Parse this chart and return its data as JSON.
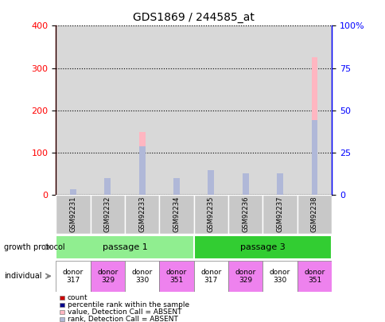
{
  "title": "GDS1869 / 244585_at",
  "samples": [
    "GSM92231",
    "GSM92232",
    "GSM92233",
    "GSM92234",
    "GSM92235",
    "GSM92236",
    "GSM92237",
    "GSM92238"
  ],
  "value_absent": [
    5,
    28,
    148,
    28,
    52,
    40,
    40,
    325
  ],
  "rank_absent_pct": [
    3.5,
    10,
    28.5,
    10,
    14.5,
    12.5,
    12.5,
    44
  ],
  "ylim_left": [
    0,
    400
  ],
  "ylim_right": [
    0,
    100
  ],
  "yticks_left": [
    0,
    100,
    200,
    300,
    400
  ],
  "yticks_right": [
    0,
    25,
    50,
    75,
    100
  ],
  "ytick_labels_right": [
    "0",
    "25",
    "50",
    "75",
    "100%"
  ],
  "growth_protocol": [
    {
      "label": "passage 1",
      "start": 0,
      "end": 4,
      "color": "#90ee90"
    },
    {
      "label": "passage 3",
      "start": 4,
      "end": 8,
      "color": "#32cd32"
    }
  ],
  "individual_donors": [
    {
      "label": "donor\n317",
      "color": "#ffffff"
    },
    {
      "label": "donor\n329",
      "color": "#ee82ee"
    },
    {
      "label": "donor\n330",
      "color": "#ffffff"
    },
    {
      "label": "donor\n351",
      "color": "#ee82ee"
    },
    {
      "label": "donor\n317",
      "color": "#ffffff"
    },
    {
      "label": "donor\n329",
      "color": "#ee82ee"
    },
    {
      "label": "donor\n330",
      "color": "#ffffff"
    },
    {
      "label": "donor\n351",
      "color": "#ee82ee"
    }
  ],
  "legend_items": [
    {
      "label": "count",
      "color": "#cc0000"
    },
    {
      "label": "percentile rank within the sample",
      "color": "#00008b"
    },
    {
      "label": "value, Detection Call = ABSENT",
      "color": "#ffb6c1"
    },
    {
      "label": "rank, Detection Call = ABSENT",
      "color": "#b0b8d8"
    }
  ],
  "bar_width": 0.18,
  "color_value_absent": "#ffb6c1",
  "color_rank_absent": "#b0b8d8",
  "color_count": "#cc0000",
  "color_percentile": "#00008b",
  "plot_bg_color": "#d8d8d8"
}
